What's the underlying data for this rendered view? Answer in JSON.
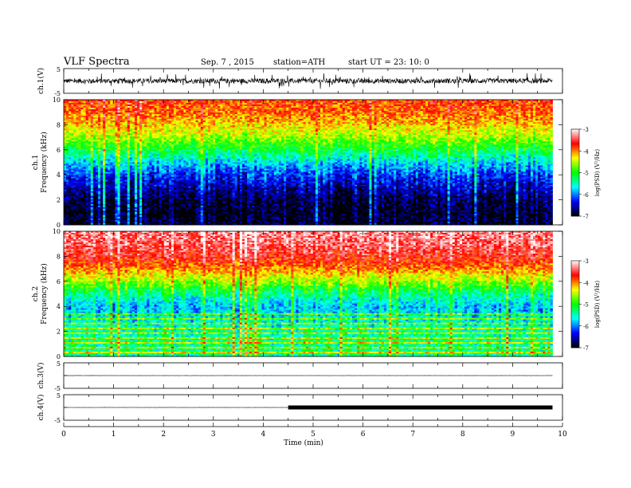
{
  "header": {
    "title": "VLF  Spectra",
    "date": "Sep. 7  , 2015",
    "station": "station=ATH",
    "start": "start  UT  =   23: 10: 0"
  },
  "chart_data": [
    {
      "type": "line",
      "name": "ch1-waveform",
      "ylabel": "ch.1(V)",
      "ylim": [
        -5,
        5
      ],
      "y_ticks": [
        "5",
        "-5"
      ],
      "x_range": [
        0,
        10
      ],
      "baseline": 0,
      "amplitude_typical": 1.0,
      "data_end_min": 9.8
    },
    {
      "type": "heatmap",
      "name": "ch1-spectrogram",
      "ylabel_line1": "ch.1",
      "ylabel_line2": "Frequency (kHz)",
      "ylim": [
        0,
        10
      ],
      "y_ticks": [
        "0",
        "2",
        "4",
        "6",
        "8",
        "10"
      ],
      "x_range": [
        0,
        9.8
      ],
      "colorbar": {
        "label": "log(PSD) (V²/Hz)",
        "range": [
          -7,
          -3
        ],
        "ticks": [
          "-3",
          "-4",
          "-5",
          "-6",
          "-7"
        ]
      },
      "psd_profile": {
        "freq_khz": [
          0,
          1,
          2,
          3,
          4,
          5,
          6,
          7,
          8,
          9,
          10
        ],
        "log_psd": [
          -6.9,
          -6.9,
          -6.8,
          -6.5,
          -6.2,
          -5.7,
          -5.1,
          -4.6,
          -4.2,
          -3.9,
          -3.8
        ]
      }
    },
    {
      "type": "heatmap",
      "name": "ch2-spectrogram",
      "ylabel_line1": "ch.2",
      "ylabel_line2": "Frequency (kHz)",
      "ylim": [
        0,
        10
      ],
      "y_ticks": [
        "0",
        "2",
        "4",
        "6",
        "8",
        "10"
      ],
      "x_range": [
        0,
        9.8
      ],
      "colorbar": {
        "label": "log(PSD) (V²/Hz)",
        "range": [
          -7,
          -3
        ],
        "ticks": [
          "-3",
          "-4",
          "-5",
          "-6",
          "-7"
        ]
      },
      "psd_profile": {
        "freq_khz": [
          0,
          1,
          2,
          3,
          4,
          5,
          6,
          7,
          8,
          9,
          10
        ],
        "log_psd": [
          -5.3,
          -5.3,
          -5.4,
          -5.6,
          -5.8,
          -5.3,
          -4.6,
          -4.0,
          -3.6,
          -3.4,
          -3.3
        ]
      }
    },
    {
      "type": "line",
      "name": "ch3-waveform",
      "ylabel": "ch.3(V)",
      "ylim": [
        -5,
        5
      ],
      "y_ticks": [
        "5",
        "-5"
      ],
      "x_range": [
        0,
        10
      ],
      "baseline": 0,
      "amplitude_typical": 0.05,
      "data_end_min": 9.8
    },
    {
      "type": "line",
      "name": "ch4-waveform",
      "ylabel": "ch.4(V)",
      "ylim": [
        -5,
        5
      ],
      "y_ticks": [
        "5",
        "-5"
      ],
      "x_range": [
        0,
        10
      ],
      "baseline": 0,
      "amplitude_typical": 0.05,
      "thick_segment_start_min": 4.5,
      "data_end_min": 9.8
    }
  ],
  "x_axis": {
    "label": "Time  (min)",
    "range": [
      0,
      10
    ],
    "ticks": [
      "0",
      "1",
      "2",
      "3",
      "4",
      "5",
      "6",
      "7",
      "8",
      "9",
      "10"
    ]
  },
  "colors": {
    "colormap": [
      "#000000",
      "#0000ff",
      "#00ffff",
      "#00ff00",
      "#ffff00",
      "#ff0000",
      "#ffffff"
    ]
  }
}
